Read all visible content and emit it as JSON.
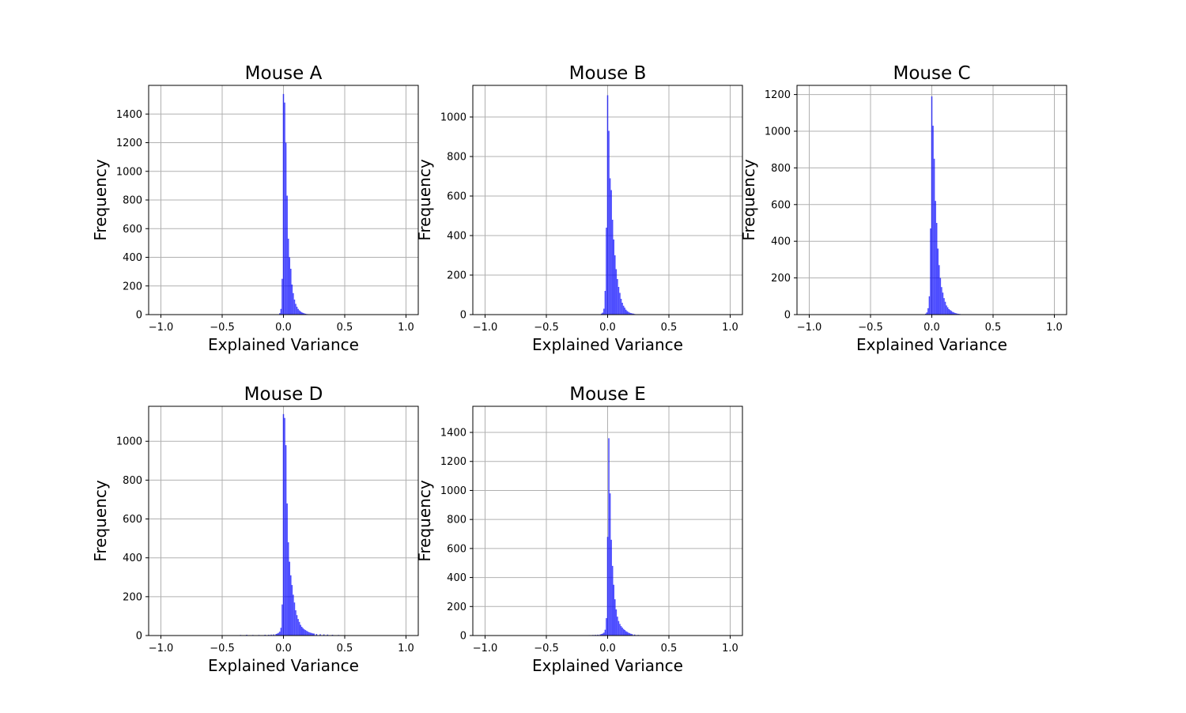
{
  "figure": {
    "background": "#ffffff",
    "bar_color": "#0000ff",
    "bar_opacity": 0.7,
    "grid_color": "#b0b0b0"
  },
  "chart_data": [
    {
      "type": "bar",
      "title": "Mouse A",
      "xlabel": "Explained Variance",
      "ylabel": "Frequency",
      "xlim": [
        -1.1,
        1.1
      ],
      "ylim": [
        0,
        1600
      ],
      "xticks": [
        -1.0,
        -0.5,
        0.0,
        0.5,
        1.0
      ],
      "xtick_labels": [
        "−1.0",
        "−0.5",
        "0.0",
        "0.5",
        "1.0"
      ],
      "yticks": [
        0,
        200,
        400,
        600,
        800,
        1000,
        1200,
        1400
      ],
      "ytick_labels": [
        "0",
        "200",
        "400",
        "600",
        "800",
        "1000",
        "1200",
        "1400"
      ],
      "grid": true,
      "bin_width": 0.01,
      "x": [
        -0.03,
        -0.02,
        -0.01,
        0.0,
        0.01,
        0.02,
        0.03,
        0.04,
        0.05,
        0.06,
        0.07,
        0.08,
        0.09,
        0.1,
        0.11,
        0.12,
        0.13,
        0.14,
        0.15,
        0.16,
        0.17,
        0.18,
        0.19,
        0.2,
        0.21
      ],
      "values": [
        10,
        40,
        250,
        1540,
        1480,
        1200,
        830,
        530,
        400,
        320,
        210,
        150,
        105,
        75,
        55,
        40,
        30,
        22,
        16,
        12,
        9,
        6,
        4,
        3,
        2
      ]
    },
    {
      "type": "bar",
      "title": "Mouse B",
      "xlabel": "Explained Variance",
      "ylabel": "Frequency",
      "xlim": [
        -1.1,
        1.1
      ],
      "ylim": [
        0,
        1160
      ],
      "xticks": [
        -1.0,
        -0.5,
        0.0,
        0.5,
        1.0
      ],
      "xtick_labels": [
        "−1.0",
        "−0.5",
        "0.0",
        "0.5",
        "1.0"
      ],
      "yticks": [
        0,
        200,
        400,
        600,
        800,
        1000
      ],
      "ytick_labels": [
        "0",
        "200",
        "400",
        "600",
        "800",
        "1000"
      ],
      "grid": true,
      "bin_width": 0.01,
      "x": [
        -0.05,
        -0.04,
        -0.03,
        -0.02,
        -0.01,
        0.0,
        0.01,
        0.02,
        0.03,
        0.04,
        0.05,
        0.06,
        0.07,
        0.08,
        0.09,
        0.1,
        0.11,
        0.12,
        0.13,
        0.14,
        0.15,
        0.16,
        0.17,
        0.18,
        0.19,
        0.2,
        0.21,
        0.22,
        0.23,
        0.24
      ],
      "values": [
        5,
        10,
        30,
        120,
        440,
        1110,
        930,
        690,
        630,
        480,
        380,
        300,
        230,
        180,
        140,
        110,
        80,
        60,
        45,
        35,
        25,
        18,
        14,
        10,
        8,
        6,
        5,
        3,
        2,
        1
      ]
    },
    {
      "type": "bar",
      "title": "Mouse C",
      "xlabel": "Explained Variance",
      "ylabel": "Frequency",
      "xlim": [
        -1.1,
        1.1
      ],
      "ylim": [
        0,
        1250
      ],
      "xticks": [
        -1.0,
        -0.5,
        0.0,
        0.5,
        1.0
      ],
      "xtick_labels": [
        "−1.0",
        "−0.5",
        "0.0",
        "0.5",
        "1.0"
      ],
      "yticks": [
        0,
        200,
        400,
        600,
        800,
        1000,
        1200
      ],
      "ytick_labels": [
        "0",
        "200",
        "400",
        "600",
        "800",
        "1000",
        "1200"
      ],
      "grid": true,
      "bin_width": 0.01,
      "x": [
        -0.05,
        -0.04,
        -0.03,
        -0.02,
        -0.01,
        0.0,
        0.01,
        0.02,
        0.03,
        0.04,
        0.05,
        0.06,
        0.07,
        0.08,
        0.09,
        0.1,
        0.11,
        0.12,
        0.13,
        0.14,
        0.15,
        0.16,
        0.17,
        0.18,
        0.19,
        0.2,
        0.21,
        0.22,
        0.23,
        0.24
      ],
      "values": [
        5,
        12,
        35,
        100,
        470,
        1190,
        1030,
        850,
        620,
        500,
        360,
        270,
        200,
        150,
        120,
        90,
        70,
        50,
        40,
        30,
        25,
        20,
        15,
        12,
        9,
        7,
        5,
        4,
        3,
        2
      ]
    },
    {
      "type": "bar",
      "title": "Mouse D",
      "xlabel": "Explained Variance",
      "ylabel": "Frequency",
      "xlim": [
        -1.1,
        1.1
      ],
      "ylim": [
        0,
        1180
      ],
      "xticks": [
        -1.0,
        -0.5,
        0.0,
        0.5,
        1.0
      ],
      "xtick_labels": [
        "−1.0",
        "−0.5",
        "0.0",
        "0.5",
        "1.0"
      ],
      "yticks": [
        0,
        200,
        400,
        600,
        800,
        1000
      ],
      "ytick_labels": [
        "0",
        "200",
        "400",
        "600",
        "800",
        "1000"
      ],
      "grid": true,
      "bin_width": 0.01,
      "x": [
        -0.35,
        -0.3,
        -0.25,
        -0.2,
        -0.15,
        -0.12,
        -0.1,
        -0.08,
        -0.06,
        -0.05,
        -0.04,
        -0.03,
        -0.02,
        -0.01,
        0.0,
        0.01,
        0.02,
        0.03,
        0.04,
        0.05,
        0.06,
        0.07,
        0.08,
        0.09,
        0.1,
        0.11,
        0.12,
        0.13,
        0.14,
        0.15,
        0.16,
        0.17,
        0.18,
        0.19,
        0.2,
        0.21,
        0.22,
        0.23,
        0.24,
        0.25,
        0.27,
        0.3,
        0.33,
        0.36,
        0.4,
        0.45,
        0.5
      ],
      "values": [
        3,
        4,
        3,
        3,
        4,
        4,
        5,
        6,
        8,
        10,
        14,
        20,
        40,
        160,
        1140,
        1120,
        980,
        680,
        480,
        380,
        310,
        260,
        210,
        170,
        130,
        105,
        85,
        70,
        55,
        45,
        38,
        32,
        28,
        24,
        20,
        17,
        15,
        13,
        11,
        10,
        8,
        7,
        6,
        5,
        4,
        3,
        2
      ]
    },
    {
      "type": "bar",
      "title": "Mouse E",
      "xlabel": "Explained Variance",
      "ylabel": "Frequency",
      "xlim": [
        -1.1,
        1.1
      ],
      "ylim": [
        0,
        1580
      ],
      "xticks": [
        -1.0,
        -0.5,
        0.0,
        0.5,
        1.0
      ],
      "xtick_labels": [
        "−1.0",
        "−0.5",
        "0.0",
        "0.5",
        "1.0"
      ],
      "yticks": [
        0,
        200,
        400,
        600,
        800,
        1000,
        1200,
        1400
      ],
      "ytick_labels": [
        "0",
        "200",
        "400",
        "600",
        "800",
        "1000",
        "1200",
        "1400"
      ],
      "grid": true,
      "bin_width": 0.01,
      "x": [
        -0.15,
        -0.12,
        -0.1,
        -0.08,
        -0.06,
        -0.05,
        -0.04,
        -0.03,
        -0.02,
        -0.01,
        0.0,
        0.01,
        0.02,
        0.03,
        0.04,
        0.05,
        0.06,
        0.07,
        0.08,
        0.09,
        0.1,
        0.11,
        0.12,
        0.13,
        0.14,
        0.15,
        0.16,
        0.17,
        0.18,
        0.19,
        0.2,
        0.22,
        0.25,
        0.28
      ],
      "values": [
        3,
        4,
        5,
        6,
        8,
        10,
        14,
        20,
        40,
        120,
        680,
        1360,
        980,
        660,
        480,
        350,
        250,
        180,
        130,
        100,
        80,
        65,
        55,
        45,
        38,
        30,
        25,
        20,
        16,
        12,
        10,
        7,
        4,
        2
      ]
    }
  ]
}
